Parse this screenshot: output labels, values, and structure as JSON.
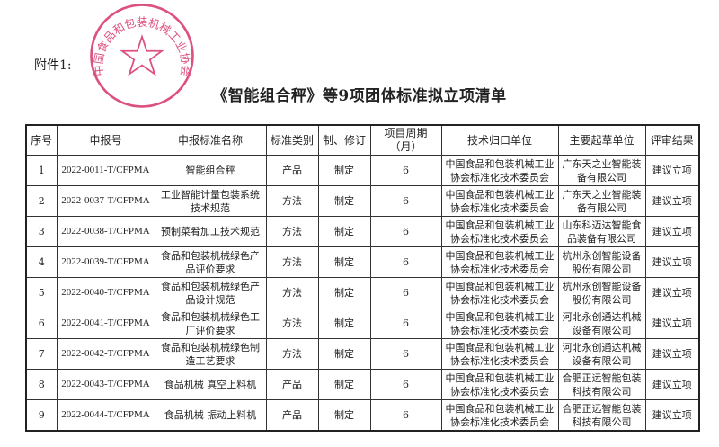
{
  "attachment_label": "附件1:",
  "title": "《智能组合秤》等9项团体标准拟立项清单",
  "stamp": {
    "text": "中国食品和包装机械工业协会",
    "color": "#d8336a"
  },
  "table": {
    "headers": [
      "序号",
      "申报号",
      "申报标准名称",
      "标准类别",
      "制、修订",
      "项目周期（月）",
      "技术归口单位",
      "主要起草单位",
      "评审结果"
    ],
    "rows": [
      [
        "1",
        "2022-0011-T/CFPMA",
        "智能组合秤",
        "产品",
        "制定",
        "6",
        "中国食品和包装机械工业协会标准化技术委员会",
        "广东天之业智能装备有限公司",
        "建议立项"
      ],
      [
        "2",
        "2022-0037-T/CFPMA",
        "工业智能计量包装系统技术规范",
        "方法",
        "制定",
        "6",
        "中国食品和包装机械工业协会标准化技术委员会",
        "广东天之业智能装备有限公司",
        "建议立项"
      ],
      [
        "3",
        "2022-0038-T/CFPMA",
        "预制菜肴加工技术规范",
        "方法",
        "制定",
        "6",
        "中国食品和包装机械工业协会标准化技术委员会",
        "山东科迈达智能食品装备有限公司",
        "建议立项"
      ],
      [
        "4",
        "2022-0039-T/CFPMA",
        "食品和包装机械绿色产品评价要求",
        "方法",
        "制定",
        "6",
        "中国食品和包装机械工业协会标准化技术委员会",
        "杭州永创智能设备股份有限公司",
        "建议立项"
      ],
      [
        "5",
        "2022-0040-T/CFPMA",
        "食品和包装机械绿色产品设计规范",
        "方法",
        "制定",
        "6",
        "中国食品和包装机械工业协会标准化技术委员会",
        "杭州永创智能设备股份有限公司",
        "建议立项"
      ],
      [
        "6",
        "2022-0041-T/CFPMA",
        "食品和包装机械绿色工厂评价要求",
        "方法",
        "制定",
        "6",
        "中国食品和包装机械工业协会标准化技术委员会",
        "河北永创通达机械设备有限公司",
        "建议立项"
      ],
      [
        "7",
        "2022-0042-T/CFPMA",
        "食品和包装机械绿色制造工艺要求",
        "方法",
        "制定",
        "6",
        "中国食品和包装机械工业协会标准化技术委员会",
        "河北永创通达机械设备有限公司",
        "建议立项"
      ],
      [
        "8",
        "2022-0043-T/CFPMA",
        "食品机械 真空上料机",
        "产品",
        "制定",
        "6",
        "中国食品和包装机械工业协会标准化技术委员会",
        "合肥正远智能包装科技有限公司",
        "建议立项"
      ],
      [
        "9",
        "2022-0044-T/CFPMA",
        "食品机械 振动上料机",
        "产品",
        "制定",
        "6",
        "中国食品和包装机械工业协会标准化技术委员会",
        "合肥正远智能包装科技有限公司",
        "建议立项"
      ]
    ]
  }
}
